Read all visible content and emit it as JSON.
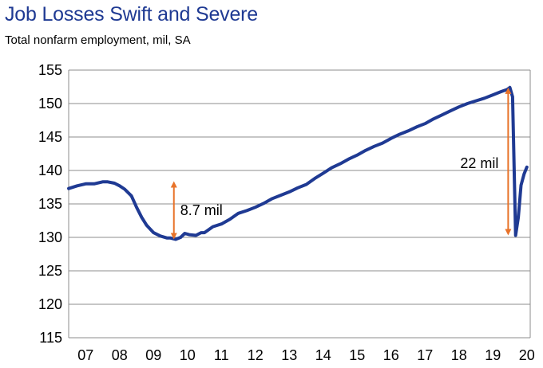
{
  "title": "Job Losses Swift and Severe",
  "subtitle": "Total nonfarm employment, mil, SA",
  "chart_data": {
    "type": "line",
    "title": "Job Losses Swift and Severe",
    "subtitle": "Total nonfarm employment, mil, SA",
    "xlabel": "",
    "ylabel": "",
    "xlim": [
      2007,
      2020.6
    ],
    "ylim": [
      115,
      155
    ],
    "yticks": [
      115,
      120,
      125,
      130,
      135,
      140,
      145,
      150,
      155
    ],
    "xticks": [
      {
        "value": 2007,
        "label": "07"
      },
      {
        "value": 2008,
        "label": "08"
      },
      {
        "value": 2009,
        "label": "09"
      },
      {
        "value": 2010,
        "label": "10"
      },
      {
        "value": 2011,
        "label": "11"
      },
      {
        "value": 2012,
        "label": "12"
      },
      {
        "value": 2013,
        "label": "13"
      },
      {
        "value": 2014,
        "label": "14"
      },
      {
        "value": 2015,
        "label": "15"
      },
      {
        "value": 2016,
        "label": "16"
      },
      {
        "value": 2017,
        "label": "17"
      },
      {
        "value": 2018,
        "label": "18"
      },
      {
        "value": 2019,
        "label": "19"
      },
      {
        "value": 2020,
        "label": "20"
      }
    ],
    "grid": true,
    "legend": "none",
    "series_color": "#1f3a93",
    "annotation_color": "#e8732a",
    "series": [
      {
        "x": [
          2007.0,
          2007.25,
          2007.5,
          2007.75,
          2008.0,
          2008.15,
          2008.35,
          2008.5,
          2008.65,
          2008.85,
          2009.0,
          2009.15,
          2009.3,
          2009.5,
          2009.7,
          2009.9,
          2010.0,
          2010.15,
          2010.3,
          2010.42,
          2010.55,
          2010.75,
          2010.9,
          2011.0,
          2011.25,
          2011.5,
          2011.75,
          2012.0,
          2012.25,
          2012.5,
          2012.75,
          2013.0,
          2013.25,
          2013.5,
          2013.75,
          2014.0,
          2014.25,
          2014.5,
          2014.75,
          2015.0,
          2015.25,
          2015.5,
          2015.75,
          2016.0,
          2016.25,
          2016.5,
          2016.75,
          2017.0,
          2017.25,
          2017.5,
          2017.75,
          2018.0,
          2018.25,
          2018.5,
          2018.75,
          2019.0,
          2019.25,
          2019.5,
          2019.75,
          2019.92,
          2020.0,
          2020.08,
          2020.17,
          2020.25,
          2020.33,
          2020.42,
          2020.5
        ],
        "values": [
          137.3,
          137.7,
          138.0,
          138.0,
          138.3,
          138.3,
          138.1,
          137.7,
          137.2,
          136.2,
          134.5,
          133.0,
          131.8,
          130.7,
          130.2,
          129.9,
          129.9,
          129.7,
          130.0,
          130.6,
          130.4,
          130.3,
          130.7,
          130.7,
          131.6,
          132.0,
          132.7,
          133.6,
          134.0,
          134.5,
          135.1,
          135.8,
          136.3,
          136.8,
          137.4,
          137.9,
          138.8,
          139.6,
          140.4,
          141.0,
          141.7,
          142.3,
          143.0,
          143.6,
          144.1,
          144.8,
          145.4,
          145.9,
          146.5,
          147.0,
          147.7,
          148.3,
          148.9,
          149.5,
          150.0,
          150.4,
          150.8,
          151.3,
          151.8,
          152.1,
          152.4,
          151.0,
          130.3,
          133.0,
          137.8,
          139.5,
          140.5
        ]
      }
    ],
    "annotations": [
      {
        "label": "8.7 mil",
        "x": 2010.1,
        "from": 138.4,
        "to": 129.7
      },
      {
        "label": "22 mil",
        "x": 2019.95,
        "from": 152.4,
        "to": 130.3
      }
    ]
  }
}
